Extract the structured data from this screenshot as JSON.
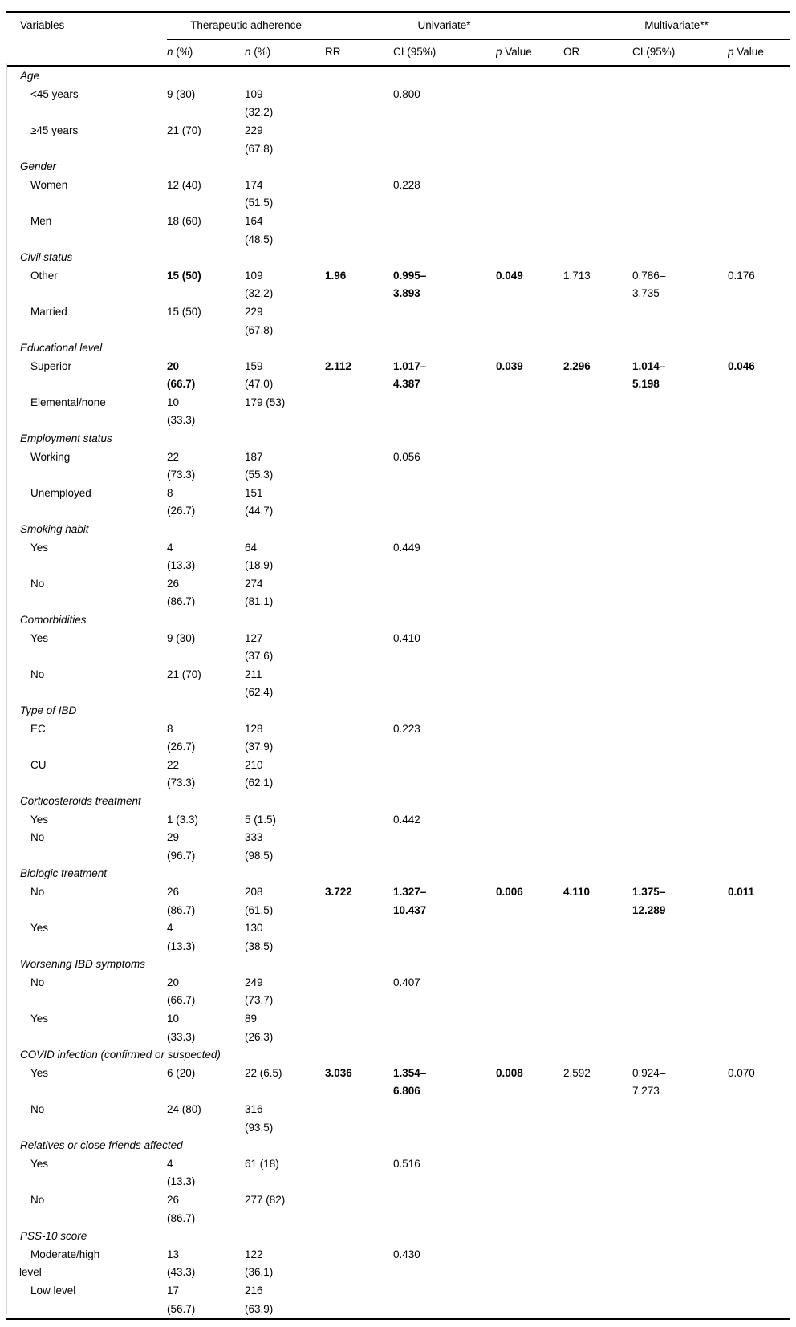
{
  "header": {
    "variables_label": "Variables",
    "groups": [
      {
        "label": "Therapeutic adherence",
        "span": 2
      },
      {
        "label": "Univariate*",
        "span": 3
      },
      {
        "label": "Multivariate**",
        "span": 3
      }
    ],
    "subheaders": [
      {
        "it": "n",
        "rest": " (%)"
      },
      {
        "it": "n",
        "rest": " (%)"
      },
      {
        "it": "",
        "rest": "RR"
      },
      {
        "it": "",
        "rest": "CI (95%)"
      },
      {
        "it": "p",
        "rest": " Value"
      },
      {
        "it": "",
        "rest": "OR"
      },
      {
        "it": "",
        "rest": "CI (95%)"
      },
      {
        "it": "p",
        "rest": " Value"
      }
    ]
  },
  "sections": [
    {
      "label": "Age",
      "rows": [
        {
          "label": "<45 years",
          "n1": "9 (30)",
          "n2": "109\n(32.2)",
          "ci": "0.800"
        },
        {
          "label": "≥45 years",
          "n1": "21 (70)",
          "n2": "229\n(67.8)"
        }
      ]
    },
    {
      "label": "Gender",
      "rows": [
        {
          "label": "Women",
          "n1": "12 (40)",
          "n2": "174\n(51.5)",
          "ci": "0.228"
        },
        {
          "label": "Men",
          "n1": "18 (60)",
          "n2": "164\n(48.5)"
        }
      ]
    },
    {
      "label": "Civil status",
      "rows": [
        {
          "label": "Other",
          "n1": "15 (50)",
          "n2": "109\n(32.2)",
          "rr": "1.96",
          "ci": "0.995–\n3.893",
          "p": "0.049",
          "or": "1.713",
          "ci2": "0.786–\n3.735",
          "p2": "0.176",
          "bold": [
            "n1",
            "rr",
            "ci",
            "p"
          ]
        },
        {
          "label": "Married",
          "n1": "15 (50)",
          "n2": "229\n(67.8)"
        }
      ]
    },
    {
      "label": "Educational level",
      "rows": [
        {
          "label": "Superior",
          "n1": "20\n(66.7)",
          "n2": "159\n(47.0)",
          "rr": "2.112",
          "ci": "1.017–\n4.387",
          "p": "0.039",
          "or": "2.296",
          "ci2": "1.014–\n5.198",
          "p2": "0.046",
          "bold": [
            "n1",
            "rr",
            "ci",
            "p",
            "or",
            "ci2",
            "p2"
          ]
        },
        {
          "label": "Elemental/none",
          "n1": "10\n(33.3)",
          "n2": "179 (53)"
        }
      ]
    },
    {
      "label": "Employment status",
      "rows": [
        {
          "label": "Working",
          "n1": "22\n(73.3)",
          "n2": "187\n(55.3)",
          "ci": "0.056"
        },
        {
          "label": "Unemployed",
          "n1": "8\n(26.7)",
          "n2": "151\n(44.7)"
        }
      ]
    },
    {
      "label": "Smoking habit",
      "rows": [
        {
          "label": "Yes",
          "n1": "4\n(13.3)",
          "n2": "64\n(18.9)",
          "ci": "0.449"
        },
        {
          "label": "No",
          "n1": "26\n(86.7)",
          "n2": "274\n(81.1)"
        }
      ]
    },
    {
      "label": "Comorbidities",
      "rows": [
        {
          "label": "Yes",
          "n1": "9 (30)",
          "n2": "127\n(37.6)",
          "ci": "0.410"
        },
        {
          "label": "No",
          "n1": "21 (70)",
          "n2": "211\n(62.4)"
        }
      ]
    },
    {
      "label": "Type of IBD",
      "rows": [
        {
          "label": "EC",
          "n1": "8\n(26.7)",
          "n2": "128\n(37.9)",
          "ci": "0.223"
        },
        {
          "label": "CU",
          "n1": "22\n(73.3)",
          "n2": "210\n(62.1)"
        }
      ]
    },
    {
      "label": "Corticosteroids treatment",
      "rows": [
        {
          "label": "Yes",
          "n1": "1 (3.3)",
          "n2": "5 (1.5)",
          "ci": "0.442"
        },
        {
          "label": "No",
          "n1": "29\n(96.7)",
          "n2": "333\n(98.5)"
        }
      ]
    },
    {
      "label": "Biologic treatment",
      "rows": [
        {
          "label": "No",
          "n1": "26\n(86.7)",
          "n2": "208\n(61.5)",
          "rr": "3.722",
          "ci": "1.327–\n10.437",
          "p": "0.006",
          "or": "4.110",
          "ci2": "1.375–\n12.289",
          "p2": "0.011",
          "bold": [
            "rr",
            "ci",
            "p",
            "or",
            "ci2",
            "p2"
          ]
        },
        {
          "label": "Yes",
          "n1": "4\n(13.3)",
          "n2": "130\n(38.5)"
        }
      ]
    },
    {
      "label": "Worsening IBD symptoms",
      "rows": [
        {
          "label": "No",
          "n1": "20\n(66.7)",
          "n2": "249\n(73.7)",
          "ci": "0.407"
        },
        {
          "label": "Yes",
          "n1": "10\n(33.3)",
          "n2": "89\n(26.3)"
        }
      ]
    },
    {
      "label": "COVID infection (confirmed or suspected)",
      "rows": [
        {
          "label": "Yes",
          "n1": "6 (20)",
          "n2": "22 (6.5)",
          "rr": "3.036",
          "ci": "1.354–\n6.806",
          "p": "0.008",
          "or": "2.592",
          "ci2": "0.924–\n7.273",
          "p2": "0.070",
          "bold": [
            "rr",
            "ci",
            "p"
          ]
        },
        {
          "label": "No",
          "n1": "24 (80)",
          "n2": "316\n(93.5)"
        }
      ]
    },
    {
      "label": "Relatives or close friends affected",
      "rows": [
        {
          "label": "Yes",
          "n1": "4\n(13.3)",
          "n2": "61 (18)",
          "ci": "0.516"
        },
        {
          "label": "No",
          "n1": "26\n(86.7)",
          "n2": "277 (82)"
        }
      ]
    },
    {
      "label": "PSS-10 score",
      "rows": [
        {
          "label": "Moderate/high\nlevel",
          "n1": "13\n(43.3)",
          "n2": "122\n(36.1)",
          "ci": "0.430"
        },
        {
          "label": "Low level",
          "n1": "17\n(56.7)",
          "n2": "216\n(63.9)"
        }
      ]
    }
  ]
}
